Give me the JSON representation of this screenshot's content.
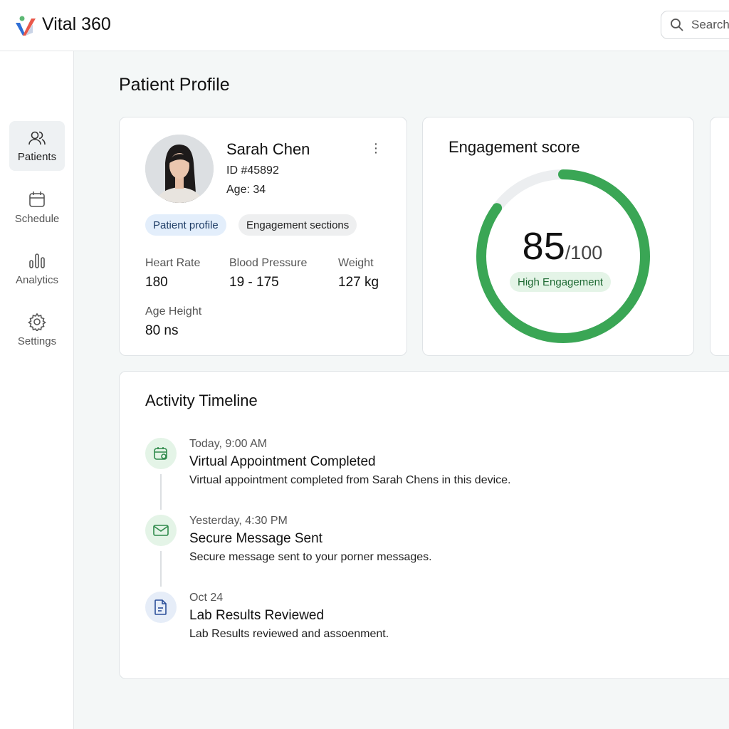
{
  "app": {
    "name": "Vital 360",
    "search_placeholder": "Search"
  },
  "sidebar": {
    "items": [
      {
        "label": "Patients",
        "icon": "users-icon",
        "active": true
      },
      {
        "label": "Schedule",
        "icon": "calendar-icon"
      },
      {
        "label": "Analytics",
        "icon": "bar-chart-icon"
      },
      {
        "label": "Settings",
        "icon": "gear-icon"
      }
    ]
  },
  "page": {
    "title": "Patient Profile"
  },
  "patient": {
    "name": "Sarah Chen",
    "id": "ID #45892",
    "age": "Age: 34",
    "chips": [
      "Patient profile",
      "Engagement sections"
    ],
    "stats": [
      {
        "label": "Heart Rate",
        "value": "180"
      },
      {
        "label": "Blood Pressure",
        "value": "19 - 175"
      },
      {
        "label": "Weight",
        "value": "127 kg"
      },
      {
        "label": "Age Height",
        "value": "80 ns"
      }
    ]
  },
  "engagement": {
    "title": "Engagement score",
    "score": "85",
    "max": "/100",
    "value": 85,
    "badge": "High Engagement",
    "color": "#3aa655"
  },
  "timeline": {
    "title": "Activity Timeline",
    "items": [
      {
        "time": "Today, 9:00 AM",
        "title": "Virtual Appointment Completed",
        "desc": "Virtual appointment completed from Sarah Chens in this device.",
        "icon": "calendar-check-icon"
      },
      {
        "time": "Yesterday, 4:30 PM",
        "title": "Secure Message Sent",
        "desc": "Secure message sent to your porner messages.",
        "icon": "mail-icon"
      },
      {
        "time": "Oct 24",
        "title": "Lab Results Reviewed",
        "desc": "Lab Results reviewed and assoenment.",
        "icon": "document-icon"
      }
    ]
  }
}
